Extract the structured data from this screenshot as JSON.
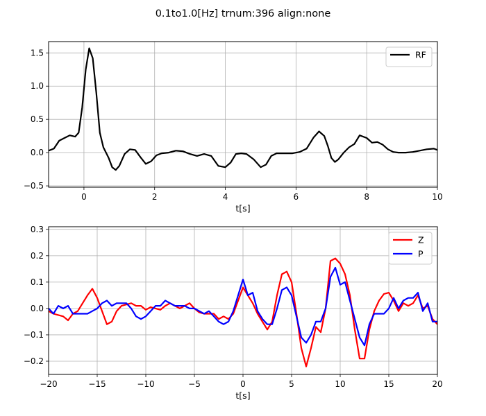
{
  "figure": {
    "title": "0.1to1.0[Hz] trnum:396 align:none"
  },
  "chart_data": [
    {
      "type": "line",
      "xlabel": "t[s]",
      "ylabel": "",
      "xlim": [
        -1,
        10
      ],
      "ylim": [
        -0.52,
        1.67
      ],
      "xticks": [
        0,
        2,
        4,
        6,
        8,
        10
      ],
      "xtick_labels": [
        "0",
        "2",
        "4",
        "6",
        "8",
        "10"
      ],
      "yticks": [
        -0.5,
        0.0,
        0.5,
        1.0,
        1.5
      ],
      "ytick_labels": [
        "−0.5",
        "0.0",
        "0.5",
        "1.0",
        "1.5"
      ],
      "grid": true,
      "legend": "top-right",
      "series": [
        {
          "name": "RF",
          "color": "#000000",
          "x": [
            -1.0,
            -0.85,
            -0.7,
            -0.55,
            -0.4,
            -0.25,
            -0.15,
            -0.05,
            0.05,
            0.15,
            0.25,
            0.35,
            0.45,
            0.55,
            0.7,
            0.8,
            0.9,
            1.0,
            1.15,
            1.3,
            1.45,
            1.6,
            1.75,
            1.9,
            2.05,
            2.2,
            2.4,
            2.6,
            2.8,
            3.0,
            3.2,
            3.4,
            3.6,
            3.8,
            4.0,
            4.15,
            4.3,
            4.45,
            4.6,
            4.8,
            5.0,
            5.15,
            5.3,
            5.45,
            5.6,
            5.75,
            5.9,
            6.1,
            6.3,
            6.5,
            6.65,
            6.8,
            6.9,
            7.0,
            7.1,
            7.2,
            7.35,
            7.5,
            7.65,
            7.8,
            8.0,
            8.15,
            8.3,
            8.45,
            8.6,
            8.75,
            8.9,
            9.1,
            9.3,
            9.5,
            9.7,
            9.9,
            10.0
          ],
          "y": [
            0.03,
            0.06,
            0.18,
            0.22,
            0.26,
            0.24,
            0.3,
            0.68,
            1.25,
            1.57,
            1.42,
            0.9,
            0.3,
            0.08,
            -0.08,
            -0.22,
            -0.26,
            -0.2,
            -0.02,
            0.05,
            0.04,
            -0.07,
            -0.17,
            -0.13,
            -0.04,
            -0.01,
            0.0,
            0.03,
            0.02,
            -0.02,
            -0.05,
            -0.02,
            -0.05,
            -0.2,
            -0.22,
            -0.15,
            -0.02,
            -0.01,
            -0.02,
            -0.1,
            -0.22,
            -0.18,
            -0.05,
            -0.01,
            -0.01,
            -0.01,
            -0.01,
            0.01,
            0.06,
            0.23,
            0.32,
            0.25,
            0.1,
            -0.08,
            -0.14,
            -0.1,
            0.0,
            0.08,
            0.13,
            0.26,
            0.22,
            0.15,
            0.16,
            0.12,
            0.05,
            0.01,
            0.0,
            0.0,
            0.01,
            0.03,
            0.05,
            0.06,
            0.04
          ]
        }
      ]
    },
    {
      "type": "line",
      "xlabel": "t[s]",
      "ylabel": "",
      "xlim": [
        -20,
        20
      ],
      "ylim": [
        -0.25,
        0.31
      ],
      "xticks": [
        -20,
        -15,
        -10,
        -5,
        0,
        5,
        10,
        15,
        20
      ],
      "xtick_labels": [
        "−20",
        "−15",
        "−10",
        "−5",
        "0",
        "5",
        "10",
        "15",
        "20"
      ],
      "yticks": [
        -0.2,
        -0.1,
        0.0,
        0.1,
        0.2,
        0.3
      ],
      "ytick_labels": [
        "−0.2",
        "−0.1",
        "0.0",
        "0.1",
        "0.2",
        "0.3"
      ],
      "grid": true,
      "legend": "top-right",
      "series": [
        {
          "name": "Z",
          "color": "#ff0000",
          "x": [
            -20,
            -19.5,
            -19,
            -18.5,
            -18,
            -17.5,
            -17,
            -16.5,
            -16,
            -15.5,
            -15,
            -14.5,
            -14,
            -13.5,
            -13,
            -12.5,
            -12,
            -11.5,
            -11,
            -10.5,
            -10,
            -9.5,
            -9,
            -8.5,
            -8,
            -7.5,
            -7,
            -6.5,
            -6,
            -5.5,
            -5,
            -4.5,
            -4,
            -3.5,
            -3,
            -2.5,
            -2,
            -1.5,
            -1,
            -0.5,
            0,
            0.5,
            1,
            1.5,
            2,
            2.5,
            3,
            3.5,
            4,
            4.5,
            5,
            5.5,
            6,
            6.5,
            7,
            7.5,
            8,
            8.5,
            9,
            9.5,
            10,
            10.5,
            11,
            11.5,
            12,
            12.5,
            13,
            13.5,
            14,
            14.5,
            15,
            15.5,
            16,
            16.5,
            17,
            17.5,
            18,
            18.5,
            19,
            19.5,
            20
          ],
          "y": [
            -0.01,
            -0.02,
            -0.025,
            -0.03,
            -0.045,
            -0.02,
            -0.01,
            0.02,
            0.05,
            0.075,
            0.04,
            -0.01,
            -0.06,
            -0.05,
            -0.01,
            0.01,
            0.015,
            0.02,
            0.01,
            0.01,
            -0.005,
            0.005,
            0.0,
            -0.005,
            0.01,
            0.02,
            0.01,
            0.0,
            0.01,
            0.02,
            0.0,
            -0.015,
            -0.02,
            -0.02,
            -0.02,
            -0.04,
            -0.03,
            -0.04,
            -0.02,
            0.03,
            0.08,
            0.05,
            0.02,
            -0.02,
            -0.05,
            -0.08,
            -0.05,
            0.05,
            0.13,
            0.14,
            0.1,
            -0.02,
            -0.15,
            -0.22,
            -0.15,
            -0.07,
            -0.09,
            0.0,
            0.18,
            0.19,
            0.17,
            0.13,
            0.05,
            -0.08,
            -0.19,
            -0.19,
            -0.08,
            -0.01,
            0.03,
            0.055,
            0.06,
            0.03,
            -0.01,
            0.02,
            0.01,
            0.02,
            0.05,
            0.0,
            0.01,
            -0.04,
            -0.06
          ]
        },
        {
          "name": "P",
          "color": "#0000ff",
          "x": [
            -20,
            -19.5,
            -19,
            -18.5,
            -18,
            -17.5,
            -17,
            -16.5,
            -16,
            -15.5,
            -15,
            -14.5,
            -14,
            -13.5,
            -13,
            -12.5,
            -12,
            -11.5,
            -11,
            -10.5,
            -10,
            -9.5,
            -9,
            -8.5,
            -8,
            -7.5,
            -7,
            -6.5,
            -6,
            -5.5,
            -5,
            -4.5,
            -4,
            -3.5,
            -3,
            -2.5,
            -2,
            -1.5,
            -1,
            -0.5,
            0,
            0.5,
            1,
            1.5,
            2,
            2.5,
            3,
            3.5,
            4,
            4.5,
            5,
            5.5,
            6,
            6.5,
            7,
            7.5,
            8,
            8.5,
            9,
            9.5,
            10,
            10.5,
            11,
            11.5,
            12,
            12.5,
            13,
            13.5,
            14,
            14.5,
            15,
            15.5,
            16,
            16.5,
            17,
            17.5,
            18,
            18.5,
            19,
            19.5,
            20
          ],
          "y": [
            0.0,
            -0.02,
            0.01,
            0.0,
            0.01,
            -0.02,
            -0.02,
            -0.02,
            -0.02,
            -0.01,
            0.0,
            0.02,
            0.03,
            0.01,
            0.02,
            0.02,
            0.02,
            0.0,
            -0.03,
            -0.04,
            -0.03,
            -0.01,
            0.01,
            0.01,
            0.03,
            0.02,
            0.01,
            0.01,
            0.01,
            0.0,
            0.0,
            -0.01,
            -0.02,
            -0.01,
            -0.03,
            -0.05,
            -0.06,
            -0.05,
            -0.01,
            0.05,
            0.11,
            0.05,
            0.06,
            -0.01,
            -0.04,
            -0.06,
            -0.06,
            0.0,
            0.07,
            0.08,
            0.05,
            -0.03,
            -0.11,
            -0.13,
            -0.1,
            -0.05,
            -0.05,
            0.0,
            0.12,
            0.155,
            0.09,
            0.1,
            0.03,
            -0.04,
            -0.11,
            -0.14,
            -0.06,
            -0.02,
            -0.02,
            -0.02,
            0.0,
            0.04,
            0.0,
            0.03,
            0.04,
            0.04,
            0.06,
            -0.01,
            0.02,
            -0.05,
            -0.05
          ]
        }
      ]
    }
  ]
}
